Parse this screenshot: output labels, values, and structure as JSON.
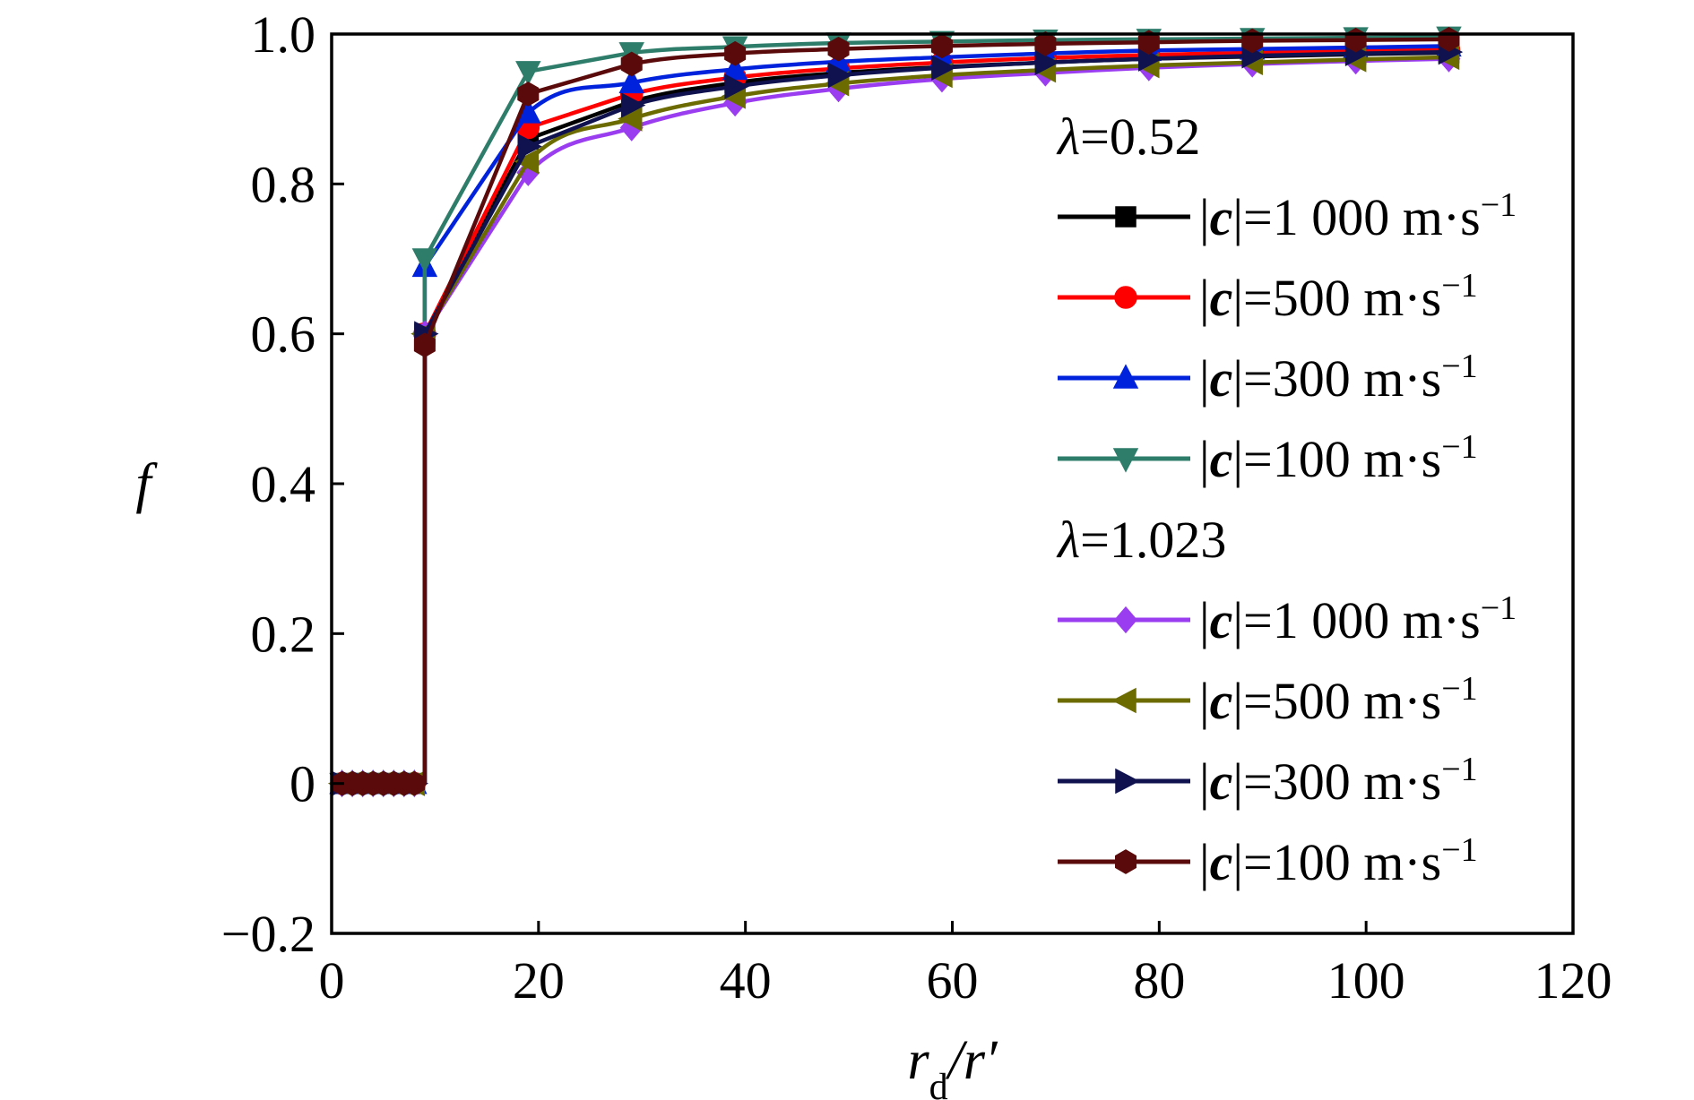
{
  "chart_data": {
    "type": "line",
    "title": "",
    "xlabel": "r_d/r′",
    "ylabel": "f",
    "xlim": [
      0,
      120
    ],
    "ylim": [
      -0.2,
      1.0
    ],
    "x_ticks": [
      "0",
      "20",
      "40",
      "60",
      "80",
      "100",
      "120"
    ],
    "y_ticks": [
      "−0.2",
      "0",
      "0.2",
      "0.4",
      "0.6",
      "0.8",
      "1.0"
    ],
    "grid": false,
    "legend_position": "right",
    "legend_groups": [
      {
        "heading_symbol": "λ",
        "heading_value": "=0.52"
      },
      {
        "heading_symbol": "λ",
        "heading_value": "=1.023"
      }
    ],
    "x": [
      1,
      2,
      3,
      4,
      5,
      6,
      7,
      8,
      9,
      19,
      29,
      39,
      49,
      59,
      69,
      79,
      89,
      99,
      108
    ],
    "series": [
      {
        "group": 0,
        "name_prefix": "|",
        "name_symbol": "c",
        "name_rest": "|=1 000 m·s",
        "name_sup": "−1",
        "color": "#000000",
        "marker": "square",
        "values": [
          0,
          0,
          0,
          0,
          0,
          0,
          0,
          0,
          0.6,
          0.86,
          0.91,
          0.935,
          0.948,
          0.956,
          0.962,
          0.967,
          0.97,
          0.973,
          0.975
        ]
      },
      {
        "group": 0,
        "name_prefix": "|",
        "name_symbol": "c",
        "name_rest": "|=500 m·s",
        "name_sup": "−1",
        "color": "#ff0000",
        "marker": "circle",
        "values": [
          0,
          0,
          0,
          0,
          0,
          0,
          0,
          0,
          0.6,
          0.875,
          0.92,
          0.942,
          0.954,
          0.962,
          0.968,
          0.972,
          0.975,
          0.977,
          0.979
        ]
      },
      {
        "group": 0,
        "name_prefix": "|",
        "name_symbol": "c",
        "name_rest": "|=300 m·s",
        "name_sup": "−1",
        "color": "#0022dd",
        "marker": "triangle-up",
        "values": [
          0,
          0,
          0,
          0,
          0,
          0,
          0,
          0,
          0.69,
          0.895,
          0.935,
          0.953,
          0.963,
          0.969,
          0.974,
          0.978,
          0.98,
          0.982,
          0.984
        ]
      },
      {
        "group": 0,
        "name_prefix": "|",
        "name_symbol": "c",
        "name_rest": "|=100 m·s",
        "name_sup": "−1",
        "color": "#2e7d6b",
        "marker": "triangle-down",
        "values": [
          0,
          0,
          0,
          0,
          0,
          0,
          0,
          0,
          0.7,
          0.95,
          0.975,
          0.983,
          0.988,
          0.99,
          0.992,
          0.993,
          0.994,
          0.995,
          0.996
        ]
      },
      {
        "group": 1,
        "name_prefix": "|",
        "name_symbol": "c",
        "name_rest": "|=1 000 m·s",
        "name_sup": "−1",
        "color": "#9a3cf0",
        "marker": "diamond",
        "values": [
          0,
          0,
          0,
          0,
          0,
          0,
          0,
          0,
          0.6,
          0.815,
          0.875,
          0.908,
          0.927,
          0.94,
          0.948,
          0.955,
          0.96,
          0.964,
          0.967
        ]
      },
      {
        "group": 1,
        "name_prefix": "|",
        "name_symbol": "c",
        "name_rest": "|=500 m·s",
        "name_sup": "−1",
        "color": "#6b6b00",
        "marker": "triangle-left",
        "values": [
          0,
          0,
          0,
          0,
          0,
          0,
          0,
          0,
          0.6,
          0.83,
          0.887,
          0.917,
          0.934,
          0.945,
          0.952,
          0.958,
          0.962,
          0.966,
          0.969
        ]
      },
      {
        "group": 1,
        "name_prefix": "|",
        "name_symbol": "c",
        "name_rest": "|=300 m·s",
        "name_sup": "−1",
        "color": "#10124f",
        "marker": "triangle-right",
        "values": [
          0,
          0,
          0,
          0,
          0,
          0,
          0,
          0,
          0.6,
          0.85,
          0.905,
          0.93,
          0.945,
          0.955,
          0.962,
          0.967,
          0.971,
          0.974,
          0.976
        ]
      },
      {
        "group": 1,
        "name_prefix": "|",
        "name_symbol": "c",
        "name_rest": "|=100 m·s",
        "name_sup": "−1",
        "color": "#5a0a0a",
        "marker": "hexagon",
        "values": [
          0,
          0,
          0,
          0,
          0,
          0,
          0,
          0,
          0.585,
          0.92,
          0.96,
          0.974,
          0.98,
          0.984,
          0.987,
          0.989,
          0.991,
          0.992,
          0.993
        ]
      }
    ]
  }
}
